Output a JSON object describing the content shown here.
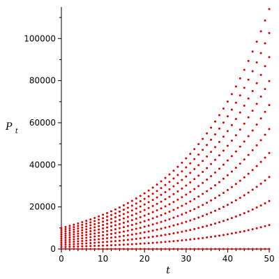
{
  "chart_data": {
    "type": "scatter",
    "title": "",
    "xlabel": "t",
    "ylabel": {
      "base": "P",
      "subscript": "t"
    },
    "xlim": [
      0,
      50
    ],
    "ylim": [
      0,
      115000
    ],
    "x_ticks": [
      "0",
      "10",
      "20",
      "30",
      "40",
      "50"
    ],
    "y_ticks": [
      "0",
      "20000",
      "40000",
      "60000",
      "80000",
      "100000"
    ],
    "x_tick_values": [
      0,
      10,
      20,
      30,
      40,
      50
    ],
    "y_tick_values": [
      0,
      20000,
      40000,
      60000,
      80000,
      100000
    ],
    "grid": false,
    "legend": "none",
    "marker_color": "#e00000",
    "x": [
      0,
      1,
      2,
      3,
      4,
      5,
      6,
      7,
      8,
      9,
      10,
      11,
      12,
      13,
      14,
      15,
      16,
      17,
      18,
      19,
      20,
      21,
      22,
      23,
      24,
      25,
      26,
      27,
      28,
      29,
      30,
      31,
      32,
      33,
      34,
      35,
      36,
      37,
      38,
      39,
      40,
      41,
      42,
      43,
      44,
      45,
      46,
      47,
      48,
      49,
      50
    ],
    "series": [
      {
        "P0": 10000,
        "end_value": 114000
      },
      {
        "P0": 9000,
        "end_value": 102600
      },
      {
        "P0": 8000,
        "end_value": 91200
      },
      {
        "P0": 7000,
        "end_value": 79800
      },
      {
        "P0": 6000,
        "end_value": 68400
      },
      {
        "P0": 5000,
        "end_value": 57000
      },
      {
        "P0": 4000,
        "end_value": 45600
      },
      {
        "P0": 3000,
        "end_value": 34200
      },
      {
        "P0": 2000,
        "end_value": 22800
      },
      {
        "P0": 1000,
        "end_value": 11400
      },
      {
        "P0": 0,
        "end_value": 0
      }
    ]
  }
}
